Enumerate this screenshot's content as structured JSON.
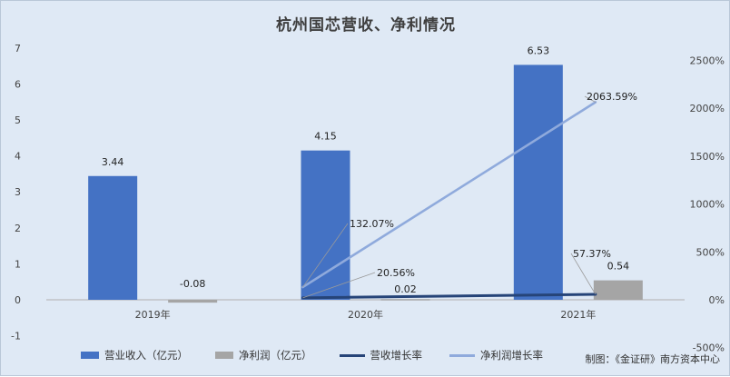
{
  "source_note": "制图：《金证研》南方资本中心",
  "chart_data": {
    "type": "bar",
    "title": "杭州国芯营收、净利情况",
    "categories": [
      "2019年",
      "2020年",
      "2021年"
    ],
    "series": [
      {
        "name": "营业收入（亿元）",
        "type": "bar",
        "axis": "left",
        "color": "#4472c4",
        "values": [
          3.44,
          4.15,
          6.53
        ],
        "labels": [
          "3.44",
          "4.15",
          "6.53"
        ]
      },
      {
        "name": "净利润（亿元）",
        "type": "bar",
        "axis": "left",
        "color": "#a5a5a5",
        "values": [
          -0.08,
          0.02,
          0.54
        ],
        "labels": [
          "-0.08",
          "0.02",
          "0.54"
        ]
      },
      {
        "name": "营收增长率",
        "type": "line",
        "axis": "right",
        "color": "#264478",
        "values": [
          null,
          20.56,
          57.37
        ],
        "labels": [
          "",
          "20.56%",
          "57.37%"
        ]
      },
      {
        "name": "净利润增长率",
        "type": "line",
        "axis": "right",
        "color": "#8faadc",
        "values": [
          null,
          132.07,
          2063.59
        ],
        "labels": [
          "",
          "132.07%",
          "2063.59%"
        ]
      }
    ],
    "y_left": {
      "min": -1,
      "max": 7,
      "ticks": [
        "-1",
        "0",
        "1",
        "2",
        "3",
        "4",
        "5",
        "6",
        "7"
      ]
    },
    "y_right": {
      "min": -500,
      "max": 2500,
      "ticks": [
        "-500%",
        "0%",
        "500%",
        "1000%",
        "1500%",
        "2000%",
        "2500%"
      ]
    },
    "grid": false,
    "legend": "bottom"
  }
}
